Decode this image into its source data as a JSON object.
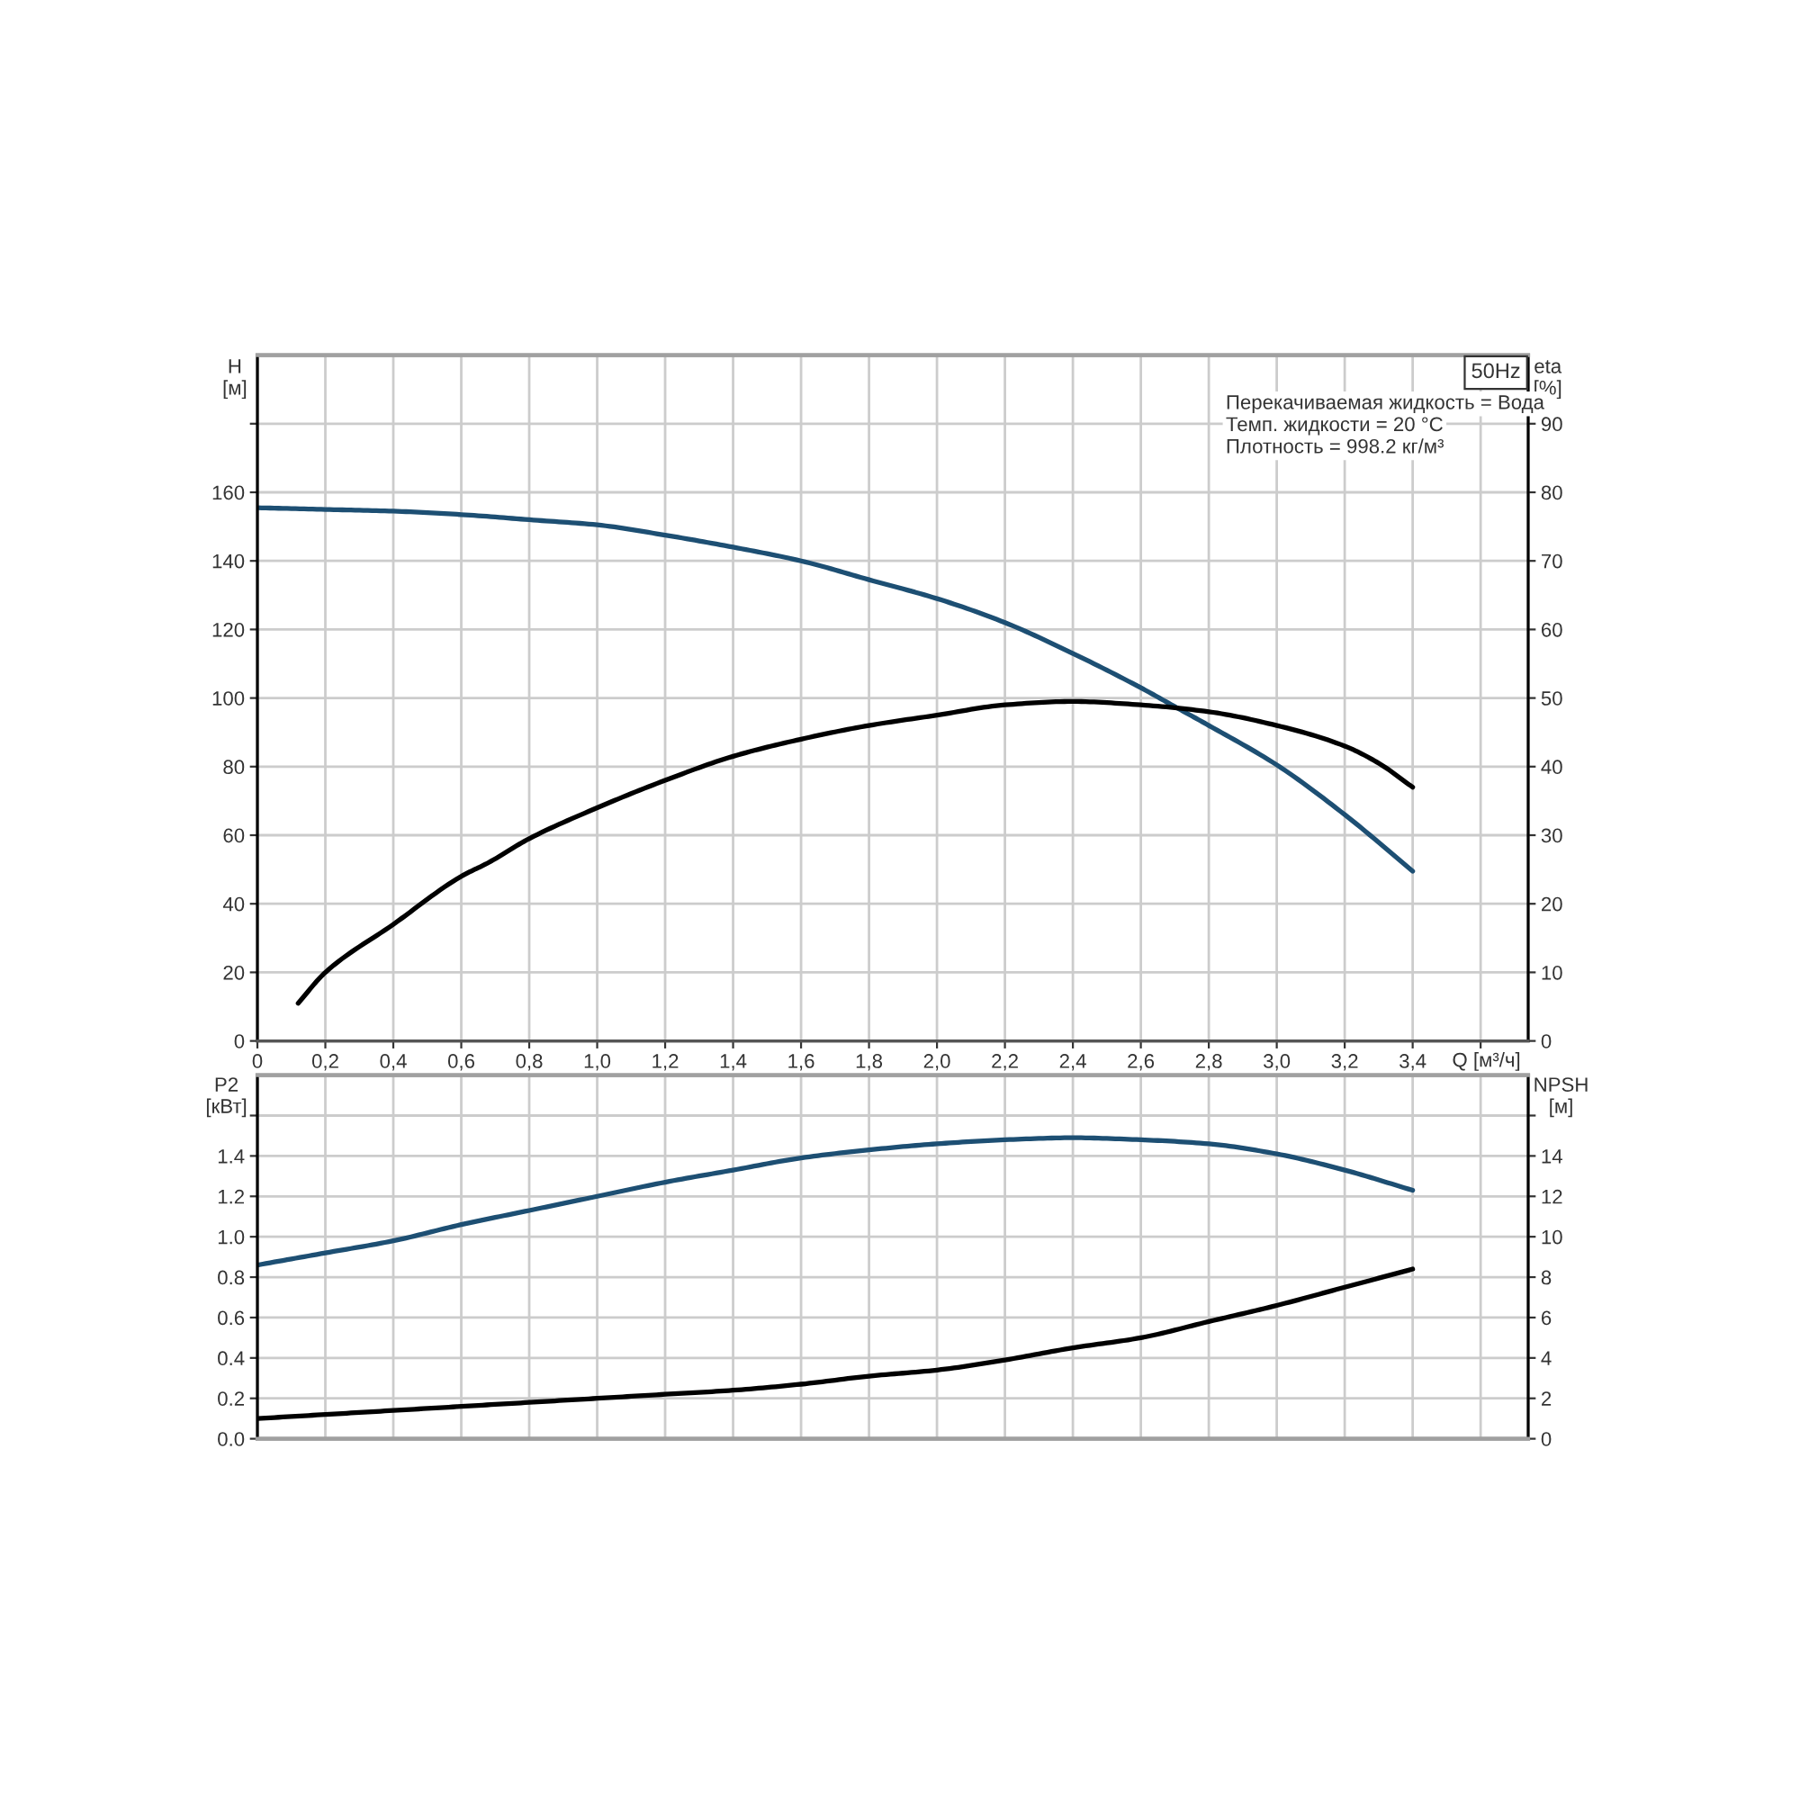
{
  "chart_data": [
    {
      "type": "line",
      "title": "50Hz",
      "xlabel": "Q [м³/ч]",
      "ylabel": "H\n[м]",
      "y2label": "eta\n[%]",
      "annotations": [
        "Перекачиваемая жидкость = Вода",
        "Темп. жидкости = 20 °C",
        "Плотность = 998.2 кг/м³"
      ],
      "series": [
        {
          "color": "#1d4f73",
          "x": [
            0,
            0.2,
            0.4,
            0.6,
            0.8,
            1.0,
            1.2,
            1.4,
            1.6,
            1.8,
            2.0,
            2.2,
            2.4,
            2.6,
            2.7,
            2.8,
            3.0,
            3.2,
            3.4
          ],
          "values": [
            155.5,
            155,
            154.5,
            153.5,
            152,
            150.5,
            147.5,
            144,
            140,
            134.5,
            129,
            122,
            113,
            103,
            97.5,
            92,
            80.5,
            66,
            49.5
          ]
        },
        {
          "color": "#000000",
          "axis": "y2",
          "x": [
            0.12,
            0.2,
            0.4,
            0.6,
            0.68,
            0.8,
            1.0,
            1.2,
            1.4,
            1.6,
            1.8,
            2.0,
            2.2,
            2.4,
            2.6,
            2.8,
            3.0,
            3.2,
            3.3,
            3.4
          ],
          "values": [
            5.5,
            10,
            17,
            24,
            26,
            29.5,
            34,
            38,
            41.5,
            44,
            46,
            47.5,
            49,
            49.5,
            49,
            48,
            46,
            43,
            40.5,
            37
          ]
        }
      ],
      "xlim": [
        0,
        3.74
      ],
      "xticks": [
        0,
        {
          "value": 0.2,
          "label": "0,2"
        },
        {
          "value": 0.4,
          "label": "0,4"
        },
        {
          "value": 0.6,
          "label": "0,6"
        },
        {
          "value": 0.8,
          "label": "0,8"
        },
        {
          "value": 1.0,
          "label": "1,0"
        },
        {
          "value": 1.2,
          "label": "1,2"
        },
        {
          "value": 1.4,
          "label": "1,4"
        },
        {
          "value": 1.6,
          "label": "1,6"
        },
        {
          "value": 1.8,
          "label": "1,8"
        },
        {
          "value": 2.0,
          "label": "2,0"
        },
        {
          "value": 2.2,
          "label": "2,2"
        },
        {
          "value": 2.4,
          "label": "2,4"
        },
        {
          "value": 2.6,
          "label": "2,6"
        },
        {
          "value": 2.8,
          "label": "2,8"
        },
        {
          "value": 3.0,
          "label": "3,0"
        },
        {
          "value": 3.2,
          "label": "3,2"
        },
        {
          "value": 3.4,
          "label": "3,4"
        },
        {
          "value": 3.6,
          "label": null
        }
      ],
      "ylim": [
        0,
        200
      ],
      "yticks": [
        0,
        20,
        40,
        60,
        80,
        100,
        120,
        140,
        160,
        {
          "value": 180,
          "label": null
        }
      ],
      "y2lim": [
        0,
        100
      ],
      "y2ticks": [
        0,
        10,
        20,
        30,
        40,
        50,
        60,
        70,
        80,
        90
      ],
      "grid": true
    },
    {
      "type": "line",
      "ylabel": "P2\n[кВт]",
      "y2label": "NPSH\n[м]",
      "series": [
        {
          "color": "#1d4f73",
          "x": [
            0,
            0.2,
            0.4,
            0.6,
            0.8,
            1.0,
            1.2,
            1.4,
            1.6,
            1.8,
            2.0,
            2.2,
            2.4,
            2.6,
            2.8,
            3.0,
            3.2,
            3.4
          ],
          "values": [
            0.86,
            0.92,
            0.98,
            1.06,
            1.13,
            1.2,
            1.27,
            1.33,
            1.39,
            1.43,
            1.46,
            1.48,
            1.49,
            1.48,
            1.46,
            1.41,
            1.33,
            1.23
          ]
        },
        {
          "color": "#000000",
          "axis": "y2",
          "x": [
            0,
            0.2,
            0.4,
            0.6,
            0.8,
            1.0,
            1.2,
            1.4,
            1.6,
            1.8,
            2.0,
            2.2,
            2.4,
            2.6,
            2.8,
            3.0,
            3.2,
            3.4
          ],
          "values": [
            1,
            1.2,
            1.4,
            1.6,
            1.8,
            2,
            2.2,
            2.4,
            2.7,
            3.1,
            3.4,
            3.9,
            4.5,
            5,
            5.8,
            6.6,
            7.5,
            8.4
          ]
        }
      ],
      "xlim": [
        0,
        3.74
      ],
      "xticks": [
        0,
        0.2,
        0.4,
        0.6,
        0.8,
        1.0,
        1.2,
        1.4,
        1.6,
        1.8,
        2.0,
        2.2,
        2.4,
        2.6,
        2.8,
        3.0,
        3.2,
        3.4,
        3.6
      ],
      "ylim": [
        0,
        1.8
      ],
      "yticks": [
        {
          "value": 0,
          "label": "0.0"
        },
        0.2,
        0.4,
        0.6,
        0.8,
        {
          "value": 1.0,
          "label": "1.0"
        },
        1.2,
        1.4,
        {
          "value": 1.6,
          "label": null
        }
      ],
      "y2lim": [
        0,
        18
      ],
      "y2ticks": [
        0,
        2,
        4,
        6,
        8,
        10,
        12,
        14,
        {
          "value": 16,
          "label": null
        }
      ],
      "grid": true,
      "tick_labels": "y"
    }
  ]
}
